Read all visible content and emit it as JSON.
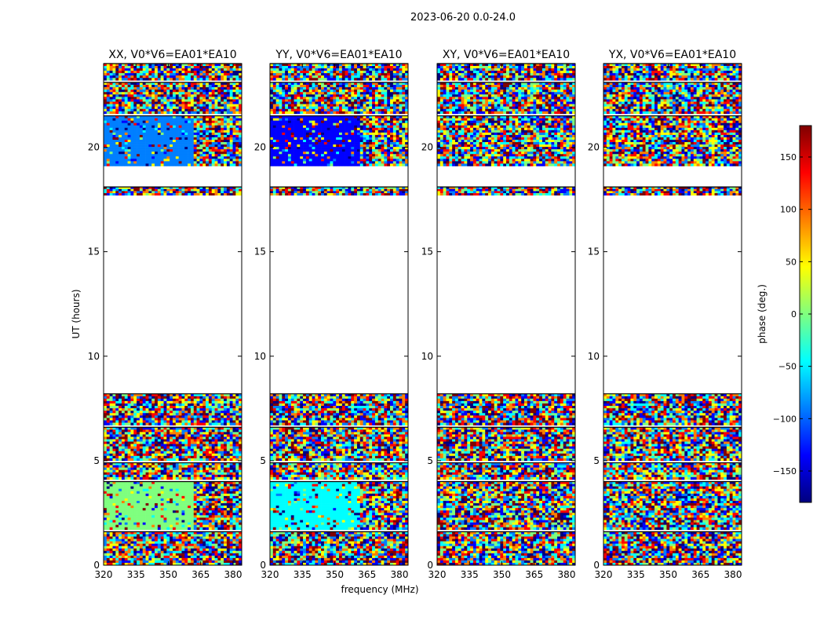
{
  "suptitle": "2023-06-20 0.0-24.0",
  "chart_data": {
    "type": "heatmap",
    "xlabel": "frequency (MHz)",
    "ylabel": "UT (hours)",
    "xlim": [
      320,
      384
    ],
    "ylim": [
      0,
      24
    ],
    "x_ticks": [
      320,
      335,
      350,
      365,
      380
    ],
    "y_ticks": [
      0,
      5,
      10,
      15,
      20
    ],
    "colorbar": {
      "label": "phase (deg.)",
      "range": [
        -180,
        180
      ],
      "ticks": [
        150,
        100,
        50,
        0,
        -50,
        -100,
        -150
      ],
      "tick_labels": [
        "150",
        "100",
        "50",
        "0",
        "−50",
        "−100",
        "−150"
      ],
      "colormap": [
        "#00007f",
        "#0000ff",
        "#007fff",
        "#00ffff",
        "#7fff7f",
        "#ffff00",
        "#ff7f00",
        "#ff0000",
        "#7f0000"
      ]
    },
    "data_bands_hours": [
      [
        0.0,
        1.6
      ],
      [
        1.7,
        4.0
      ],
      [
        4.1,
        4.9
      ],
      [
        5.0,
        6.6
      ],
      [
        6.7,
        8.2
      ],
      [
        17.7,
        18.1
      ],
      [
        19.1,
        21.5
      ],
      [
        21.6,
        23.1
      ],
      [
        23.2,
        24.0
      ]
    ],
    "panels": [
      {
        "title": "XX, V0*V6=EA01*EA10",
        "pol": "XX",
        "note": "flat phase in some rows"
      },
      {
        "title": "YY, V0*V6=EA01*EA10",
        "pol": "YY",
        "note": "flat phase in some rows"
      },
      {
        "title": "XY, V0*V6=EA01*EA10",
        "pol": "XY",
        "note": "random phase"
      },
      {
        "title": "YX, V0*V6=EA01*EA10",
        "pol": "YX",
        "note": "random phase"
      }
    ]
  }
}
